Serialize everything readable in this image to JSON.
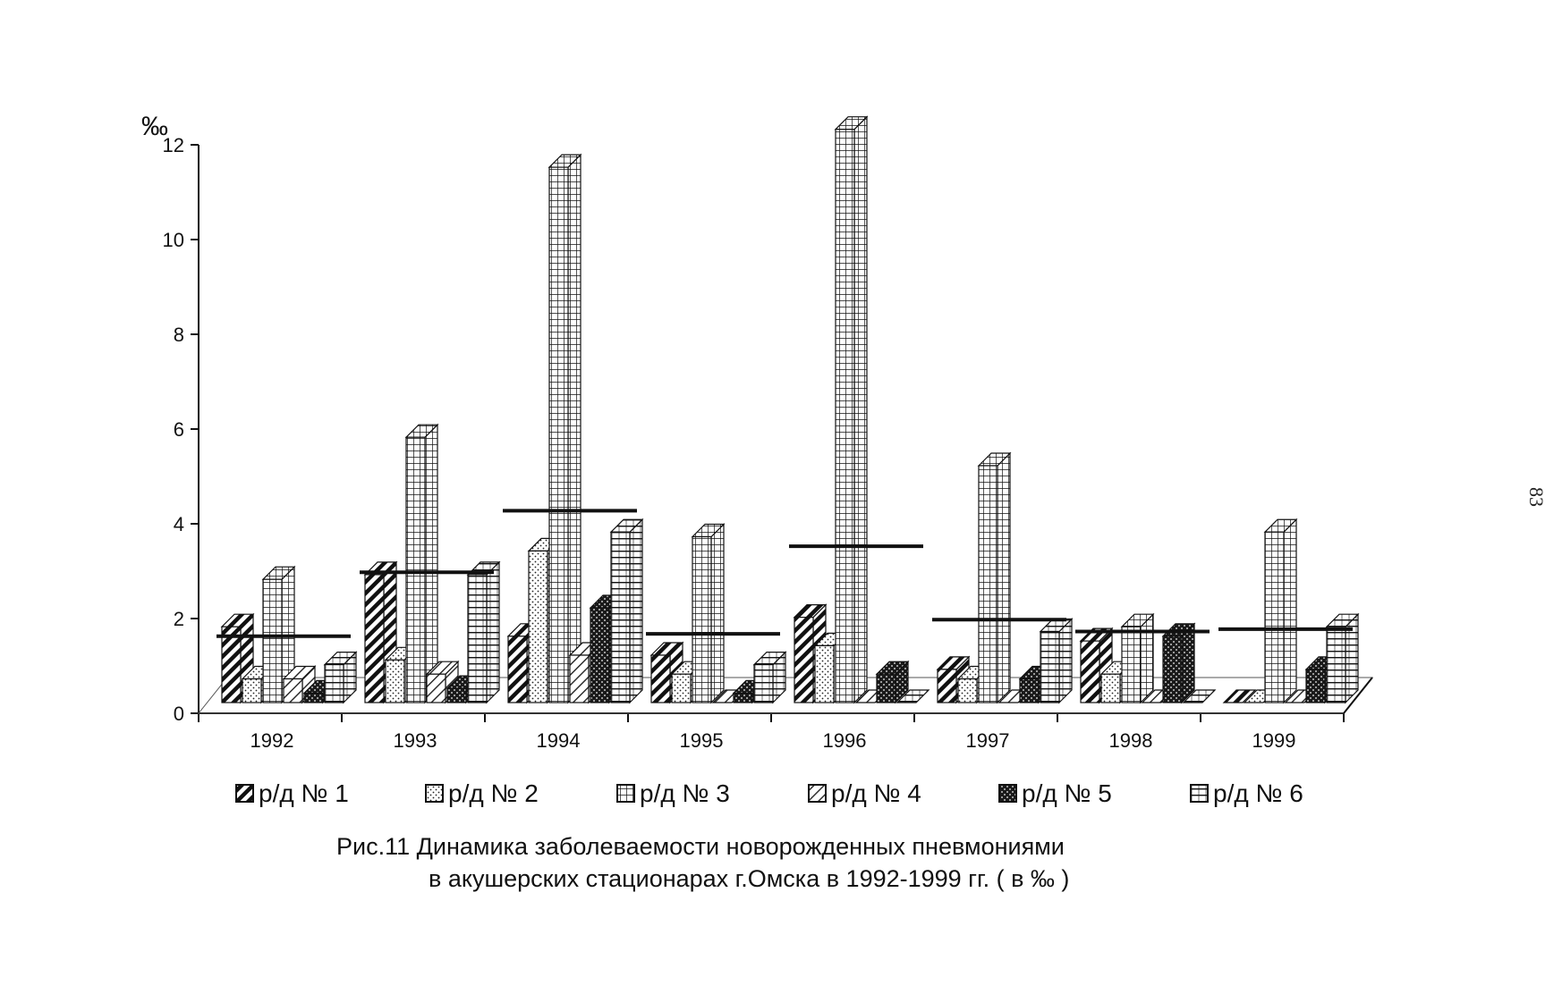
{
  "page_number": "83",
  "caption": {
    "line1": "Рис.11  Динамика заболеваемости новорожденных пневмониями",
    "line2": "в акушерских стационарах г.Омска в 1992-1999 гг. ( в ‰ )"
  },
  "chart_data": {
    "type": "bar",
    "title": "",
    "xlabel": "",
    "ylabel": "‰",
    "ylim": [
      0,
      12
    ],
    "yticks": [
      0,
      2,
      4,
      6,
      8,
      10,
      12
    ],
    "categories": [
      "1992",
      "1993",
      "1994",
      "1995",
      "1996",
      "1997",
      "1998",
      "1999"
    ],
    "series": [
      {
        "name": "р/д № 1",
        "pattern": "diagonal-hatch",
        "values": [
          1.6,
          2.7,
          1.4,
          1.0,
          1.8,
          0.7,
          1.3,
          0.0
        ]
      },
      {
        "name": "р/д № 2",
        "pattern": "dotted",
        "values": [
          0.5,
          0.9,
          3.2,
          0.6,
          1.2,
          0.5,
          0.6,
          0.0
        ]
      },
      {
        "name": "р/д № 3",
        "pattern": "grid",
        "values": [
          2.6,
          5.6,
          11.3,
          3.5,
          12.1,
          5.0,
          1.6,
          3.6
        ]
      },
      {
        "name": "р/д № 4",
        "pattern": "light-diagonal",
        "values": [
          0.5,
          0.6,
          1.0,
          0.0,
          0.0,
          0.0,
          0.0,
          0.0
        ]
      },
      {
        "name": "р/д № 5",
        "pattern": "dark-checker",
        "values": [
          0.2,
          0.3,
          2.0,
          0.2,
          0.6,
          0.5,
          1.4,
          0.7
        ]
      },
      {
        "name": "р/д № 6",
        "pattern": "horizontal-lines",
        "values": [
          0.8,
          2.7,
          3.6,
          0.8,
          0.0,
          1.5,
          0.0,
          1.6
        ]
      }
    ],
    "average": {
      "values": [
        1.4,
        2.75,
        4.05,
        1.45,
        3.3,
        1.75,
        1.5,
        1.55
      ]
    },
    "grid": false,
    "legend_position": "bottom"
  }
}
